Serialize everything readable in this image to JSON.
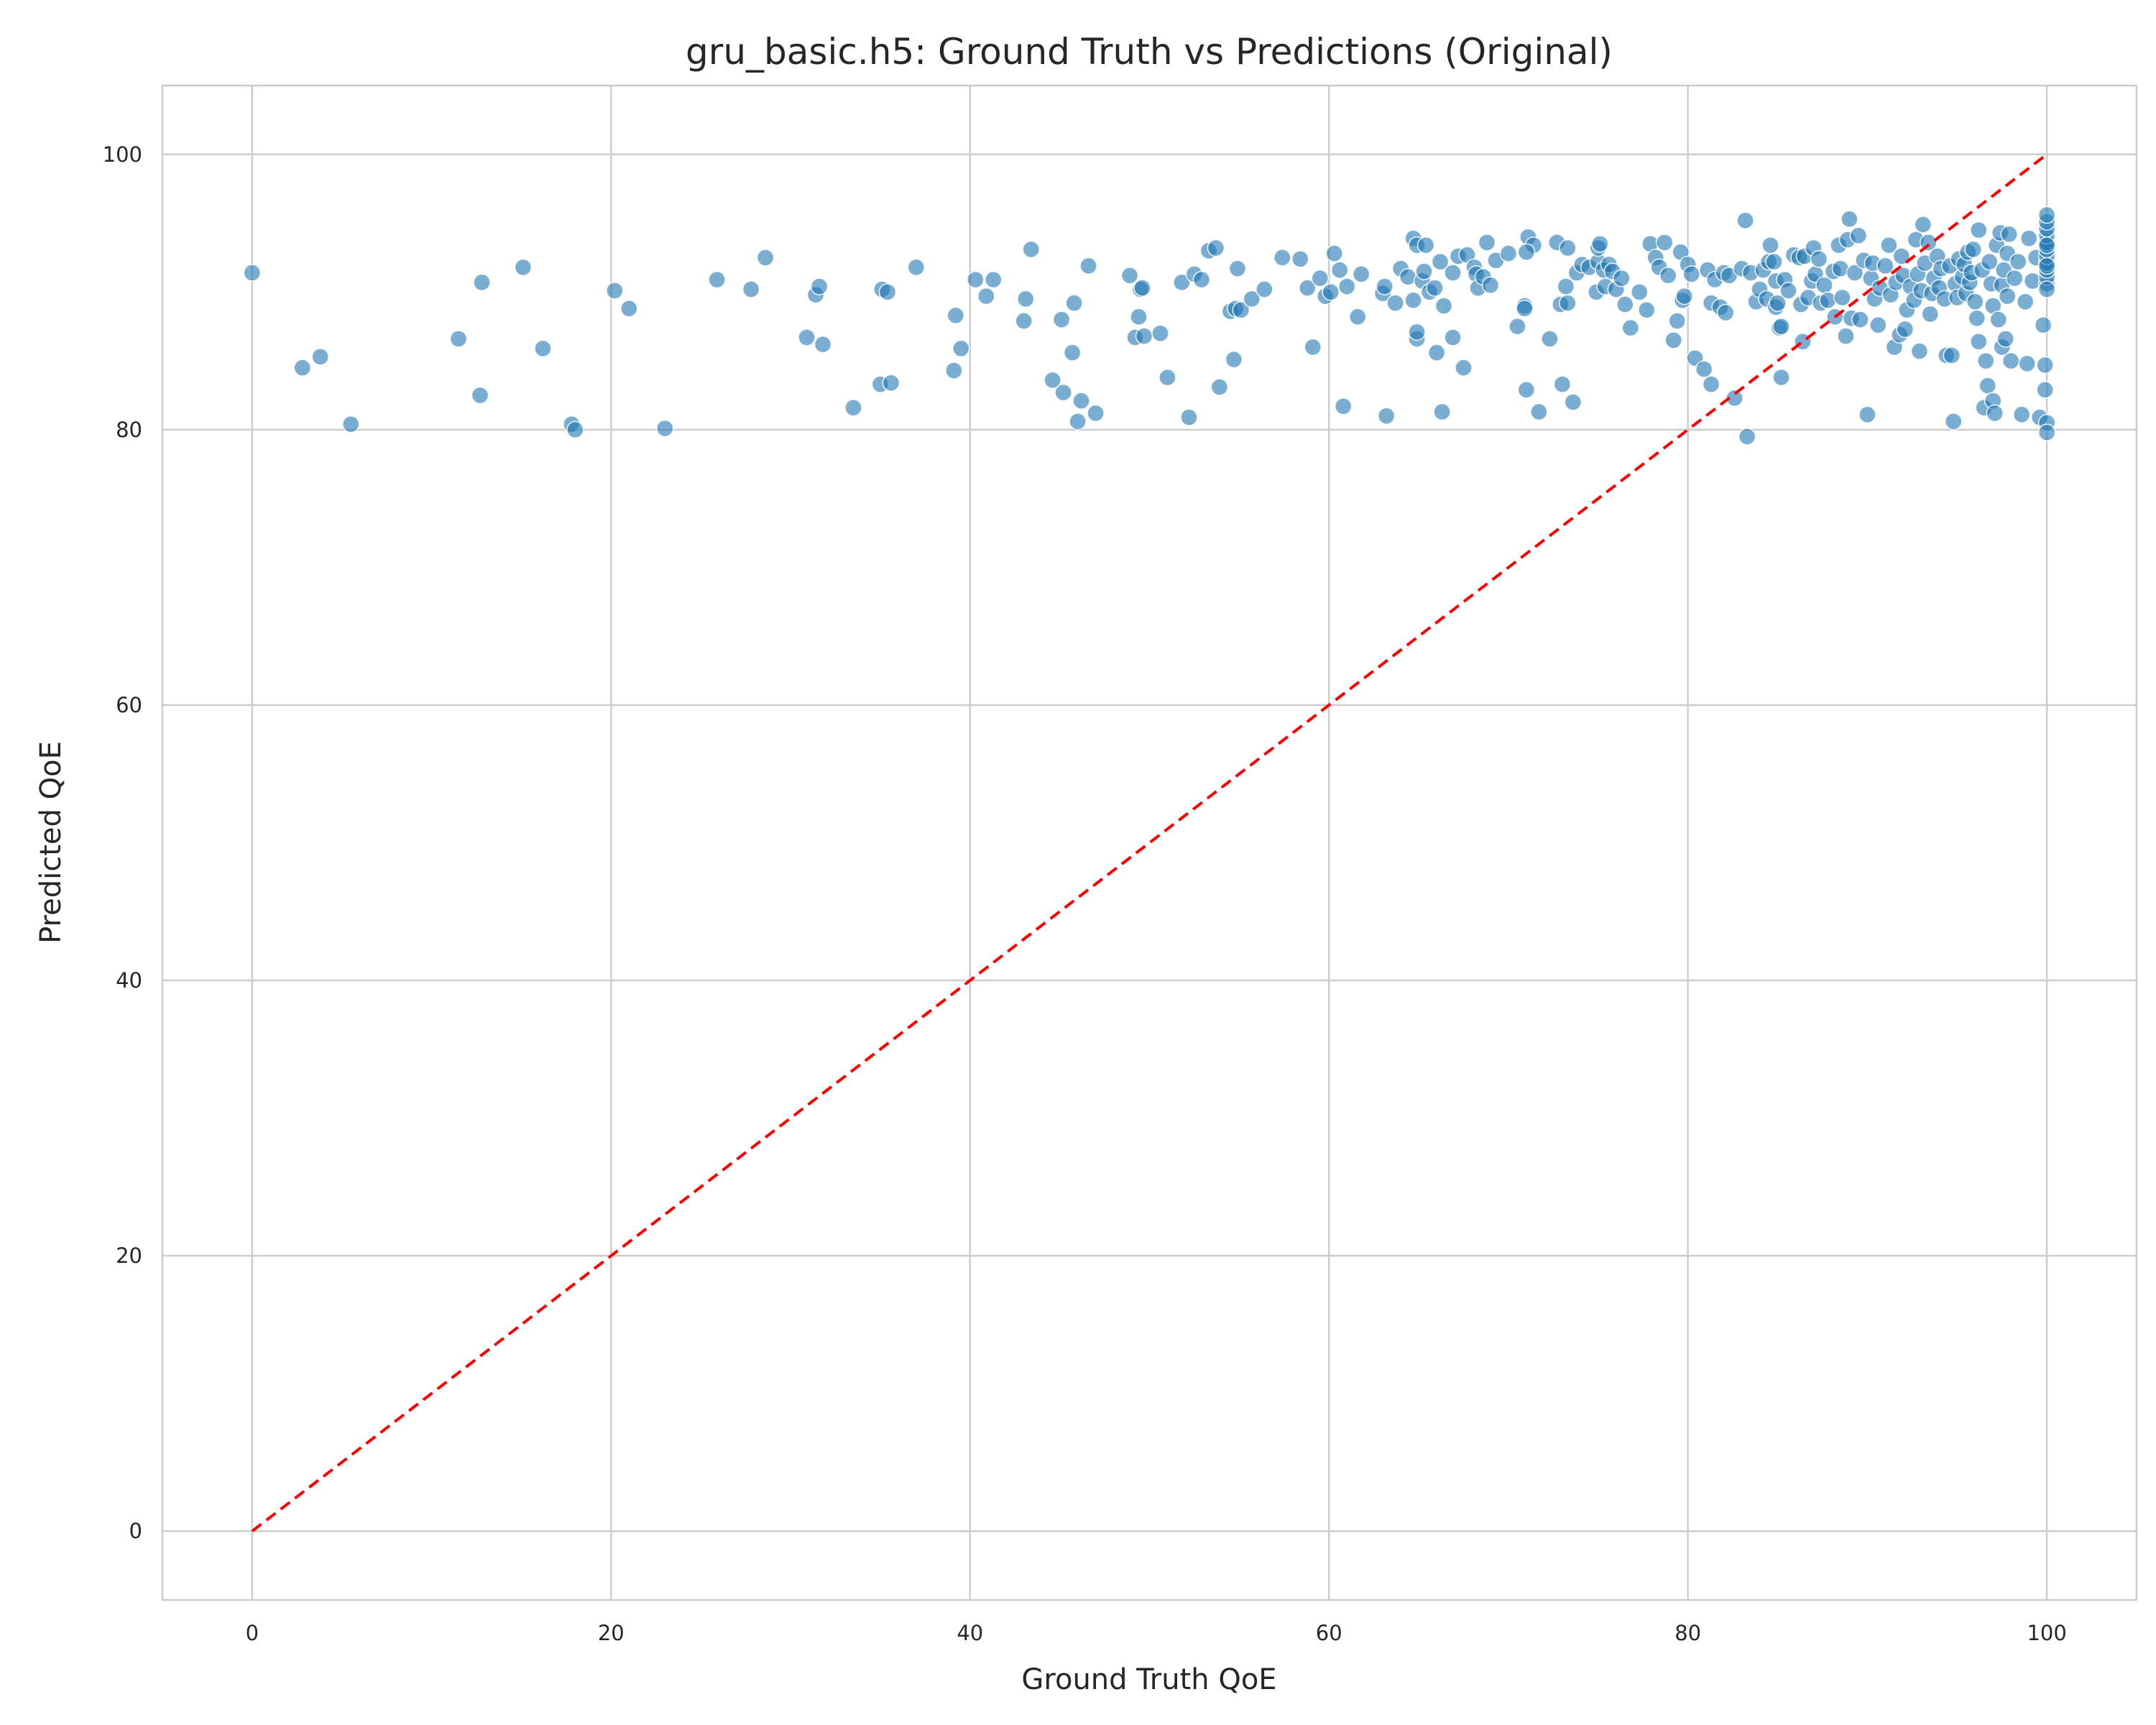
{
  "chart_data": {
    "type": "scatter",
    "title": "gru_basic.h5: Ground Truth vs Predictions (Original)",
    "xlabel": "Ground Truth QoE",
    "ylabel": "Predicted QoE",
    "xlim": [
      -5,
      105
    ],
    "ylim": [
      -5,
      105
    ],
    "xticks": [
      0,
      20,
      40,
      60,
      80,
      100
    ],
    "yticks": [
      0,
      20,
      40,
      60,
      80,
      100
    ],
    "grid": true,
    "colors": {
      "points": "#1f77b4",
      "reference_line": "#ff0000",
      "grid": "#cccccc",
      "frame": "#cccccc"
    },
    "reference_line": {
      "style": "dashed",
      "from": [
        0,
        0
      ],
      "to": [
        100,
        100
      ]
    },
    "points": [
      [
        0.0,
        91.4
      ],
      [
        2.8,
        84.5
      ],
      [
        3.8,
        85.3
      ],
      [
        5.5,
        80.4
      ],
      [
        11.5,
        86.6
      ],
      [
        12.7,
        82.5
      ],
      [
        12.8,
        90.7
      ],
      [
        15.1,
        91.8
      ],
      [
        16.2,
        85.9
      ],
      [
        17.8,
        80.4
      ],
      [
        18.0,
        80.0
      ],
      [
        20.2,
        90.1
      ],
      [
        21.0,
        88.8
      ],
      [
        23.0,
        80.1
      ],
      [
        25.9,
        90.9
      ],
      [
        27.8,
        90.2
      ],
      [
        28.6,
        92.5
      ],
      [
        30.9,
        86.7
      ],
      [
        31.4,
        89.8
      ],
      [
        31.6,
        90.4
      ],
      [
        31.8,
        86.2
      ],
      [
        33.5,
        81.6
      ],
      [
        35.0,
        83.3
      ],
      [
        35.1,
        90.2
      ],
      [
        35.4,
        90.0
      ],
      [
        35.6,
        83.4
      ],
      [
        37.0,
        91.8
      ],
      [
        39.1,
        84.3
      ],
      [
        39.2,
        88.3
      ],
      [
        39.5,
        85.9
      ],
      [
        40.3,
        90.9
      ],
      [
        40.9,
        89.7
      ],
      [
        41.3,
        90.9
      ],
      [
        43.0,
        87.9
      ],
      [
        43.1,
        89.5
      ],
      [
        43.4,
        93.1
      ],
      [
        44.6,
        83.6
      ],
      [
        45.1,
        88.0
      ],
      [
        45.2,
        82.7
      ],
      [
        45.7,
        85.6
      ],
      [
        45.8,
        89.2
      ],
      [
        46.0,
        80.6
      ],
      [
        46.2,
        82.1
      ],
      [
        46.6,
        91.9
      ],
      [
        47.0,
        81.2
      ],
      [
        48.9,
        91.2
      ],
      [
        49.2,
        86.7
      ],
      [
        49.4,
        88.2
      ],
      [
        49.5,
        90.2
      ],
      [
        49.7,
        86.8
      ],
      [
        49.6,
        90.3
      ],
      [
        50.6,
        87.0
      ],
      [
        51.0,
        83.8
      ],
      [
        51.8,
        90.7
      ],
      [
        52.2,
        80.9
      ],
      [
        52.5,
        91.3
      ],
      [
        52.9,
        90.9
      ],
      [
        53.3,
        93.0
      ],
      [
        53.7,
        93.2
      ],
      [
        53.9,
        83.1
      ],
      [
        54.5,
        88.6
      ],
      [
        54.7,
        85.1
      ],
      [
        54.8,
        88.8
      ],
      [
        54.9,
        91.7
      ],
      [
        55.1,
        88.7
      ],
      [
        55.7,
        89.5
      ],
      [
        56.4,
        90.2
      ],
      [
        57.4,
        92.5
      ],
      [
        58.4,
        92.4
      ],
      [
        58.8,
        90.3
      ],
      [
        59.1,
        86.0
      ],
      [
        59.5,
        91.0
      ],
      [
        59.8,
        89.7
      ],
      [
        60.1,
        90.0
      ],
      [
        60.3,
        92.8
      ],
      [
        60.6,
        91.6
      ],
      [
        60.8,
        81.7
      ],
      [
        61.0,
        90.4
      ],
      [
        61.6,
        88.2
      ],
      [
        61.8,
        91.3
      ],
      [
        63.0,
        89.9
      ],
      [
        63.1,
        90.4
      ],
      [
        63.2,
        81.0
      ],
      [
        63.7,
        89.2
      ],
      [
        64.0,
        91.7
      ],
      [
        64.4,
        91.1
      ],
      [
        64.7,
        89.4
      ],
      [
        64.7,
        93.9
      ],
      [
        64.9,
        86.6
      ],
      [
        64.9,
        87.1
      ],
      [
        64.9,
        93.4
      ],
      [
        65.2,
        90.8
      ],
      [
        65.3,
        91.5
      ],
      [
        65.4,
        93.4
      ],
      [
        65.6,
        90.0
      ],
      [
        65.9,
        90.3
      ],
      [
        66.0,
        85.6
      ],
      [
        66.2,
        92.2
      ],
      [
        66.3,
        81.3
      ],
      [
        66.4,
        89.0
      ],
      [
        66.9,
        91.4
      ],
      [
        66.9,
        86.7
      ],
      [
        67.2,
        92.6
      ],
      [
        67.5,
        84.5
      ],
      [
        67.7,
        92.7
      ],
      [
        68.1,
        91.8
      ],
      [
        68.2,
        91.3
      ],
      [
        68.3,
        90.3
      ],
      [
        68.6,
        91.1
      ],
      [
        68.8,
        93.6
      ],
      [
        69.0,
        90.5
      ],
      [
        69.3,
        92.3
      ],
      [
        70.0,
        92.8
      ],
      [
        70.5,
        87.5
      ],
      [
        70.9,
        89.0
      ],
      [
        70.9,
        88.8
      ],
      [
        71.0,
        82.9
      ],
      [
        71.1,
        94.0
      ],
      [
        71.4,
        93.4
      ],
      [
        71.7,
        81.3
      ],
      [
        71.0,
        92.9
      ],
      [
        72.3,
        86.6
      ],
      [
        72.7,
        93.6
      ],
      [
        72.9,
        89.1
      ],
      [
        73.0,
        83.3
      ],
      [
        73.2,
        90.4
      ],
      [
        73.3,
        93.2
      ],
      [
        73.3,
        89.2
      ],
      [
        73.6,
        82.0
      ],
      [
        73.8,
        91.4
      ],
      [
        74.1,
        92.0
      ],
      [
        74.5,
        91.8
      ],
      [
        74.9,
        90.0
      ],
      [
        75.0,
        92.2
      ],
      [
        75.0,
        93.2
      ],
      [
        75.1,
        93.5
      ],
      [
        75.3,
        91.6
      ],
      [
        75.4,
        90.4
      ],
      [
        75.6,
        92.0
      ],
      [
        75.8,
        91.5
      ],
      [
        76.0,
        90.2
      ],
      [
        76.3,
        91.0
      ],
      [
        76.5,
        89.1
      ],
      [
        76.8,
        87.4
      ],
      [
        77.3,
        90.0
      ],
      [
        77.7,
        88.7
      ],
      [
        77.9,
        93.5
      ],
      [
        78.2,
        92.5
      ],
      [
        78.4,
        91.8
      ],
      [
        78.7,
        93.6
      ],
      [
        78.9,
        91.2
      ],
      [
        79.2,
        86.5
      ],
      [
        79.4,
        87.9
      ],
      [
        79.6,
        92.9
      ],
      [
        79.7,
        89.4
      ],
      [
        79.8,
        89.7
      ],
      [
        80.0,
        92.0
      ],
      [
        80.2,
        91.3
      ],
      [
        80.4,
        85.2
      ],
      [
        80.9,
        84.4
      ],
      [
        81.1,
        91.6
      ],
      [
        81.3,
        89.2
      ],
      [
        81.3,
        83.3
      ],
      [
        81.5,
        90.9
      ],
      [
        81.8,
        88.9
      ],
      [
        82.0,
        91.4
      ],
      [
        82.3,
        91.2
      ],
      [
        82.1,
        88.5
      ],
      [
        82.6,
        82.3
      ],
      [
        83.0,
        91.7
      ],
      [
        83.2,
        95.2
      ],
      [
        83.3,
        79.5
      ],
      [
        83.5,
        91.4
      ],
      [
        83.8,
        89.3
      ],
      [
        84.0,
        90.2
      ],
      [
        84.2,
        91.6
      ],
      [
        84.4,
        89.5
      ],
      [
        84.5,
        92.2
      ],
      [
        84.6,
        93.4
      ],
      [
        84.8,
        92.2
      ],
      [
        84.9,
        90.8
      ],
      [
        84.9,
        88.9
      ],
      [
        85.0,
        89.2
      ],
      [
        85.1,
        87.4
      ],
      [
        85.2,
        87.5
      ],
      [
        85.2,
        83.8
      ],
      [
        85.4,
        90.9
      ],
      [
        85.6,
        90.1
      ],
      [
        85.9,
        92.7
      ],
      [
        86.2,
        92.5
      ],
      [
        86.3,
        89.1
      ],
      [
        86.4,
        86.4
      ],
      [
        86.5,
        92.6
      ],
      [
        86.7,
        89.6
      ],
      [
        86.9,
        90.8
      ],
      [
        87.0,
        93.2
      ],
      [
        87.1,
        91.3
      ],
      [
        87.3,
        92.4
      ],
      [
        87.4,
        89.2
      ],
      [
        87.6,
        90.5
      ],
      [
        87.8,
        89.4
      ],
      [
        88.1,
        91.5
      ],
      [
        88.2,
        88.2
      ],
      [
        88.4,
        93.4
      ],
      [
        88.5,
        91.7
      ],
      [
        88.6,
        89.6
      ],
      [
        88.8,
        86.8
      ],
      [
        88.9,
        93.8
      ],
      [
        89.0,
        95.3
      ],
      [
        89.1,
        88.1
      ],
      [
        89.3,
        91.4
      ],
      [
        89.5,
        94.1
      ],
      [
        89.6,
        88.0
      ],
      [
        89.8,
        92.3
      ],
      [
        90.0,
        81.1
      ],
      [
        90.2,
        91.0
      ],
      [
        90.3,
        92.1
      ],
      [
        90.4,
        89.5
      ],
      [
        90.6,
        87.6
      ],
      [
        90.7,
        90.3
      ],
      [
        91.0,
        91.9
      ],
      [
        91.2,
        93.4
      ],
      [
        91.3,
        89.8
      ],
      [
        91.5,
        86.0
      ],
      [
        91.6,
        90.7
      ],
      [
        91.8,
        86.9
      ],
      [
        91.9,
        92.6
      ],
      [
        92.0,
        91.2
      ],
      [
        92.1,
        87.3
      ],
      [
        92.2,
        88.7
      ],
      [
        92.4,
        90.4
      ],
      [
        92.6,
        89.4
      ],
      [
        92.7,
        93.8
      ],
      [
        92.8,
        91.3
      ],
      [
        92.9,
        85.7
      ],
      [
        93.0,
        90.1
      ],
      [
        93.1,
        94.9
      ],
      [
        93.2,
        92.1
      ],
      [
        93.4,
        93.6
      ],
      [
        93.5,
        88.4
      ],
      [
        93.6,
        89.9
      ],
      [
        93.7,
        91.0
      ],
      [
        93.9,
        92.6
      ],
      [
        94.0,
        90.3
      ],
      [
        94.1,
        91.7
      ],
      [
        94.3,
        89.5
      ],
      [
        94.4,
        85.4
      ],
      [
        94.6,
        91.9
      ],
      [
        94.7,
        85.4
      ],
      [
        94.8,
        80.6
      ],
      [
        94.9,
        90.6
      ],
      [
        95.0,
        89.6
      ],
      [
        95.1,
        92.4
      ],
      [
        95.3,
        91.1
      ],
      [
        95.4,
        92.0
      ],
      [
        95.5,
        89.9
      ],
      [
        95.6,
        92.9
      ],
      [
        95.7,
        90.7
      ],
      [
        95.8,
        91.4
      ],
      [
        95.9,
        93.1
      ],
      [
        96.0,
        89.3
      ],
      [
        96.1,
        88.1
      ],
      [
        96.2,
        86.4
      ],
      [
        96.2,
        94.5
      ],
      [
        96.4,
        91.6
      ],
      [
        96.5,
        81.6
      ],
      [
        96.6,
        85.0
      ],
      [
        96.7,
        83.2
      ],
      [
        96.8,
        92.2
      ],
      [
        96.9,
        90.6
      ],
      [
        97.0,
        89.0
      ],
      [
        97.0,
        82.1
      ],
      [
        97.1,
        81.2
      ],
      [
        97.2,
        93.4
      ],
      [
        97.3,
        88.0
      ],
      [
        97.4,
        94.3
      ],
      [
        97.5,
        90.5
      ],
      [
        97.5,
        86.0
      ],
      [
        97.6,
        91.6
      ],
      [
        97.7,
        86.6
      ],
      [
        97.8,
        89.7
      ],
      [
        97.8,
        92.8
      ],
      [
        97.9,
        94.2
      ],
      [
        98.0,
        85.0
      ],
      [
        98.2,
        91.0
      ],
      [
        98.4,
        92.2
      ],
      [
        98.6,
        81.1
      ],
      [
        98.8,
        89.3
      ],
      [
        98.9,
        84.8
      ],
      [
        99.0,
        93.9
      ],
      [
        99.2,
        90.8
      ],
      [
        99.4,
        92.5
      ],
      [
        99.6,
        80.9
      ],
      [
        99.8,
        87.6
      ],
      [
        99.9,
        84.7
      ],
      [
        99.9,
        82.9
      ],
      [
        100.0,
        80.5
      ],
      [
        100.0,
        79.8
      ],
      [
        100.0,
        90.6
      ],
      [
        100.0,
        91.1
      ],
      [
        100.0,
        91.6
      ],
      [
        100.0,
        92.1
      ],
      [
        100.0,
        92.6
      ],
      [
        100.0,
        93.1
      ],
      [
        100.0,
        93.6
      ],
      [
        100.0,
        94.1
      ],
      [
        100.0,
        94.6
      ],
      [
        100.0,
        95.1
      ],
      [
        100.0,
        95.6
      ],
      [
        100.0,
        90.2
      ],
      [
        100.0,
        91.9
      ],
      [
        100.0,
        93.4
      ]
    ]
  }
}
